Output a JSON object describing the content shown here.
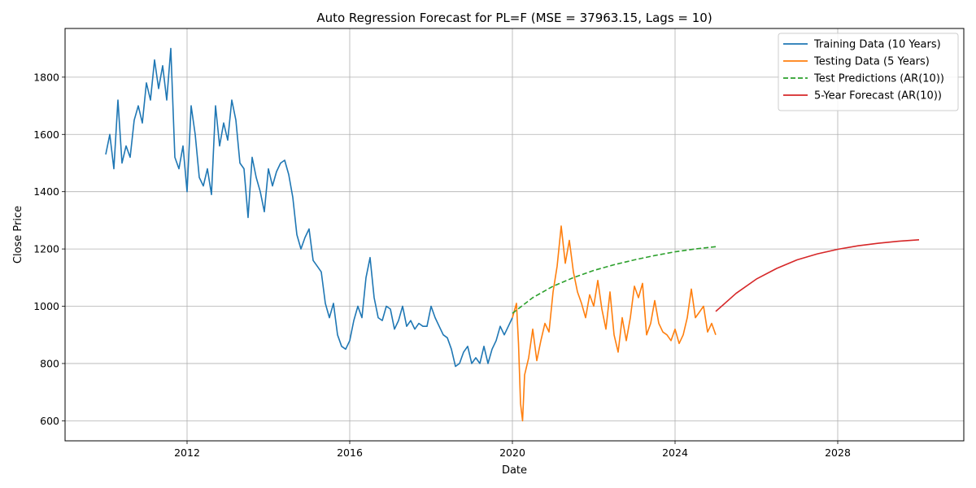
{
  "chart_data": {
    "type": "line",
    "title": "Auto Regression Forecast for PL=F (MSE = 37963.15, Lags = 10)",
    "xlabel": "Date",
    "ylabel": "Close Price",
    "xlim": [
      2009.0,
      2031.1
    ],
    "ylim": [
      530,
      1970
    ],
    "x_ticks": [
      2012,
      2016,
      2020,
      2024,
      2028
    ],
    "y_ticks": [
      600,
      800,
      1000,
      1200,
      1400,
      1600,
      1800
    ],
    "grid": true,
    "legend_position": "top-right",
    "series": [
      {
        "name": "Training Data (10 Years)",
        "color": "#1f77b4",
        "style": "solid",
        "x": [
          2010.0,
          2010.1,
          2010.2,
          2010.3,
          2010.4,
          2010.5,
          2010.6,
          2010.7,
          2010.8,
          2010.9,
          2011.0,
          2011.1,
          2011.2,
          2011.3,
          2011.4,
          2011.5,
          2011.6,
          2011.7,
          2011.8,
          2011.9,
          2012.0,
          2012.1,
          2012.2,
          2012.3,
          2012.4,
          2012.5,
          2012.6,
          2012.7,
          2012.8,
          2012.9,
          2013.0,
          2013.1,
          2013.2,
          2013.3,
          2013.4,
          2013.5,
          2013.6,
          2013.7,
          2013.8,
          2013.9,
          2014.0,
          2014.1,
          2014.2,
          2014.3,
          2014.4,
          2014.5,
          2014.6,
          2014.7,
          2014.8,
          2014.9,
          2015.0,
          2015.1,
          2015.2,
          2015.3,
          2015.4,
          2015.5,
          2015.6,
          2015.7,
          2015.8,
          2015.9,
          2016.0,
          2016.1,
          2016.2,
          2016.3,
          2016.4,
          2016.5,
          2016.6,
          2016.7,
          2016.8,
          2016.9,
          2017.0,
          2017.1,
          2017.2,
          2017.3,
          2017.4,
          2017.5,
          2017.6,
          2017.7,
          2017.8,
          2017.9,
          2018.0,
          2018.1,
          2018.2,
          2018.3,
          2018.4,
          2018.5,
          2018.6,
          2018.7,
          2018.8,
          2018.9,
          2019.0,
          2019.1,
          2019.2,
          2019.3,
          2019.4,
          2019.5,
          2019.6,
          2019.7,
          2019.8,
          2019.9,
          2020.0
        ],
        "y": [
          1530,
          1600,
          1480,
          1720,
          1500,
          1560,
          1520,
          1650,
          1700,
          1640,
          1780,
          1720,
          1860,
          1760,
          1840,
          1720,
          1900,
          1520,
          1480,
          1560,
          1400,
          1700,
          1600,
          1450,
          1420,
          1480,
          1390,
          1700,
          1560,
          1640,
          1580,
          1720,
          1650,
          1500,
          1480,
          1310,
          1520,
          1450,
          1400,
          1330,
          1480,
          1420,
          1470,
          1500,
          1510,
          1460,
          1380,
          1250,
          1200,
          1240,
          1270,
          1160,
          1140,
          1120,
          1010,
          960,
          1010,
          900,
          860,
          850,
          880,
          950,
          1000,
          960,
          1100,
          1170,
          1030,
          960,
          950,
          1000,
          990,
          920,
          950,
          1000,
          930,
          950,
          920,
          940,
          930,
          930,
          1000,
          960,
          930,
          900,
          890,
          850,
          790,
          800,
          840,
          860,
          800,
          820,
          800,
          860,
          800,
          850,
          880,
          930,
          900,
          930,
          960
        ]
      },
      {
        "name": "Testing Data (5 Years)",
        "color": "#ff7f0e",
        "style": "solid",
        "x": [
          2020.0,
          2020.1,
          2020.15,
          2020.2,
          2020.25,
          2020.3,
          2020.4,
          2020.5,
          2020.6,
          2020.7,
          2020.8,
          2020.9,
          2021.0,
          2021.1,
          2021.2,
          2021.3,
          2021.4,
          2021.5,
          2021.6,
          2021.7,
          2021.8,
          2021.9,
          2022.0,
          2022.1,
          2022.2,
          2022.3,
          2022.4,
          2022.5,
          2022.6,
          2022.7,
          2022.8,
          2022.9,
          2023.0,
          2023.1,
          2023.2,
          2023.3,
          2023.4,
          2023.5,
          2023.6,
          2023.7,
          2023.8,
          2023.9,
          2024.0,
          2024.1,
          2024.2,
          2024.3,
          2024.4,
          2024.5,
          2024.6,
          2024.7,
          2024.8,
          2024.9,
          2025.0
        ],
        "y": [
          960,
          1010,
          870,
          660,
          600,
          760,
          820,
          920,
          810,
          880,
          940,
          910,
          1050,
          1140,
          1280,
          1150,
          1230,
          1120,
          1050,
          1010,
          960,
          1040,
          1000,
          1090,
          990,
          920,
          1050,
          900,
          840,
          960,
          880,
          960,
          1070,
          1030,
          1080,
          900,
          940,
          1020,
          940,
          910,
          900,
          880,
          920,
          870,
          900,
          960,
          1060,
          960,
          980,
          1000,
          910,
          940,
          900
        ]
      },
      {
        "name": "Test Predictions (AR(10))",
        "color": "#2ca02c",
        "style": "dashed",
        "x": [
          2020.0,
          2020.5,
          2021.0,
          2021.5,
          2022.0,
          2022.5,
          2023.0,
          2023.5,
          2024.0,
          2024.5,
          2025.0
        ],
        "y": [
          975,
          1030,
          1070,
          1100,
          1125,
          1145,
          1162,
          1177,
          1190,
          1200,
          1208
        ]
      },
      {
        "name": "5-Year Forecast (AR(10))",
        "color": "#d62728",
        "style": "solid",
        "x": [
          2025.0,
          2025.5,
          2026.0,
          2026.5,
          2027.0,
          2027.5,
          2028.0,
          2028.5,
          2029.0,
          2029.5,
          2030.0
        ],
        "y": [
          982,
          1045,
          1095,
          1132,
          1162,
          1183,
          1199,
          1211,
          1220,
          1227,
          1232
        ]
      }
    ]
  }
}
